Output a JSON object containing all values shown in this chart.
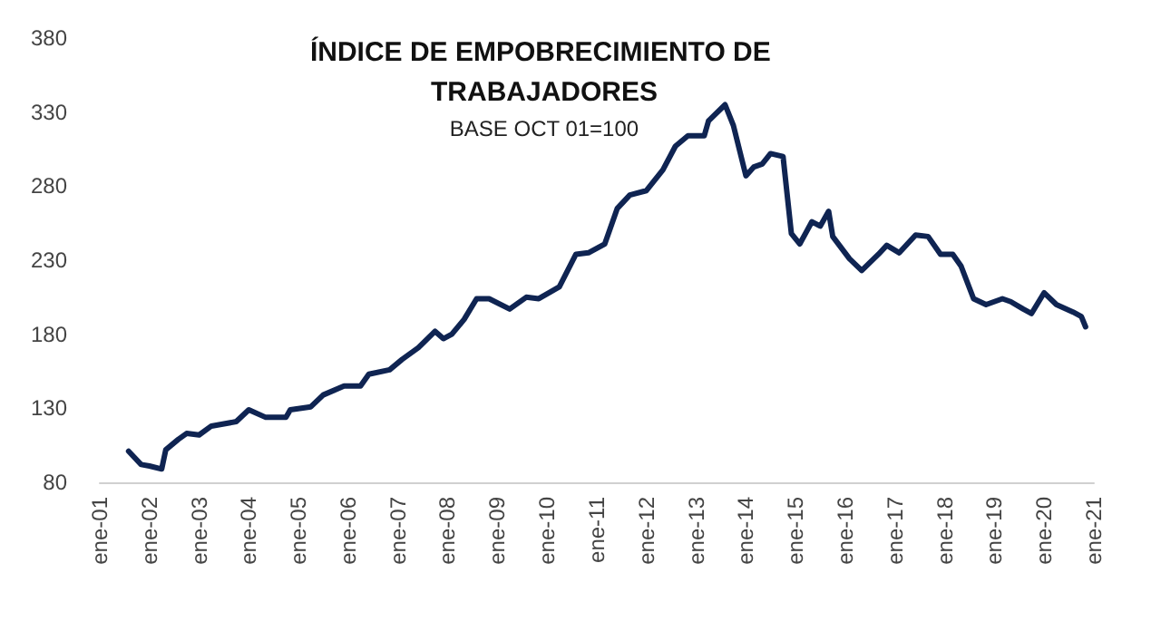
{
  "chart_data": {
    "type": "line",
    "title": "ÍNDICE DE EMPOBRECIMIENTO DE TRABAJADORES",
    "subtitle": "BASE OCT 01=100",
    "x": [
      "2001-08",
      "2001-11",
      "2002-01",
      "2002-04",
      "2002-05",
      "2002-08",
      "2002-10",
      "2003-01",
      "2003-04",
      "2003-10",
      "2004-01",
      "2004-05",
      "2004-10",
      "2004-11",
      "2005-04",
      "2005-07",
      "2005-12",
      "2006-04",
      "2006-06",
      "2006-11",
      "2007-02",
      "2007-06",
      "2007-10",
      "2007-12",
      "2008-02",
      "2008-05",
      "2008-08",
      "2008-11",
      "2009-04",
      "2009-08",
      "2009-11",
      "2010-04",
      "2010-08",
      "2010-11",
      "2011-03",
      "2011-06",
      "2011-09",
      "2012-01",
      "2012-05",
      "2012-08",
      "2012-11",
      "2013-03",
      "2013-04",
      "2013-08",
      "2013-10",
      "2014-01",
      "2014-03",
      "2014-05",
      "2014-07",
      "2014-10",
      "2014-12",
      "2015-02",
      "2015-05",
      "2015-07",
      "2015-09",
      "2015-10",
      "2016-02",
      "2016-05",
      "2016-09",
      "2016-11",
      "2017-02",
      "2017-06",
      "2017-09",
      "2017-12",
      "2018-03",
      "2018-05",
      "2018-08",
      "2018-11",
      "2019-03",
      "2019-05",
      "2019-08",
      "2019-10",
      "2020-01",
      "2020-04",
      "2020-08",
      "2020-10",
      "2020-11"
    ],
    "series": [
      {
        "color": "#0f2452",
        "values": [
          101,
          92,
          91,
          89,
          102,
          109,
          113,
          112,
          118,
          121,
          129,
          124,
          124,
          129,
          131,
          139,
          145,
          145,
          153,
          156,
          163,
          171,
          182,
          177,
          180,
          190,
          204,
          204,
          197,
          205,
          204,
          212,
          234,
          235,
          241,
          265,
          274,
          277,
          291,
          307,
          314,
          314,
          324,
          335,
          321,
          287,
          293,
          295,
          302,
          300,
          248,
          241,
          256,
          253,
          263,
          246,
          231,
          223,
          234,
          240,
          235,
          247,
          246,
          234,
          234,
          226,
          204,
          200,
          204,
          202,
          197,
          194,
          208,
          200,
          195,
          192,
          185
        ]
      }
    ],
    "xlim": [
      "2001-01",
      "2021-01"
    ],
    "xticks": [
      {
        "value": "2001-01",
        "label": "ene-01"
      },
      {
        "value": "2002-01",
        "label": "ene-02"
      },
      {
        "value": "2003-01",
        "label": "ene-03"
      },
      {
        "value": "2004-01",
        "label": "ene-04"
      },
      {
        "value": "2005-01",
        "label": "ene-05"
      },
      {
        "value": "2006-01",
        "label": "ene-06"
      },
      {
        "value": "2007-01",
        "label": "ene-07"
      },
      {
        "value": "2008-01",
        "label": "ene-08"
      },
      {
        "value": "2009-01",
        "label": "ene-09"
      },
      {
        "value": "2010-01",
        "label": "ene-10"
      },
      {
        "value": "2011-01",
        "label": "ene-11"
      },
      {
        "value": "2012-01",
        "label": "ene-12"
      },
      {
        "value": "2013-01",
        "label": "ene-13"
      },
      {
        "value": "2014-01",
        "label": "ene-14"
      },
      {
        "value": "2015-01",
        "label": "ene-15"
      },
      {
        "value": "2016-01",
        "label": "ene-16"
      },
      {
        "value": "2017-01",
        "label": "ene-17"
      },
      {
        "value": "2018-01",
        "label": "ene-18"
      },
      {
        "value": "2019-01",
        "label": "ene-19"
      },
      {
        "value": "2020-01",
        "label": "ene-20"
      },
      {
        "value": "2021-01",
        "label": "ene-21"
      }
    ],
    "ylim": [
      80,
      380
    ],
    "yticks": [
      80,
      130,
      180,
      230,
      280,
      330,
      380
    ],
    "grid": false,
    "marker": "none",
    "line_style": "solid"
  }
}
